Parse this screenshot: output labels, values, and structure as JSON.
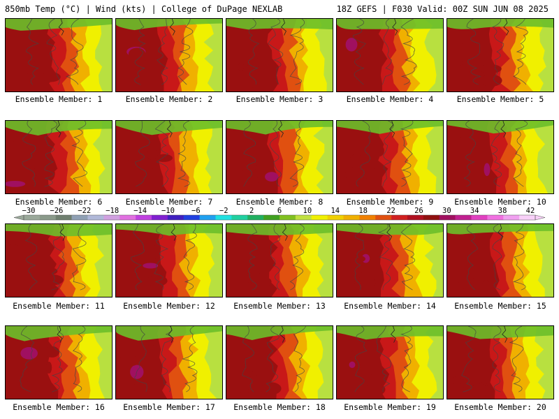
{
  "header": {
    "left": "850mb Temp (°C) | Wind (kts) | College of DuPage NEXLAB",
    "right": "18Z GEFS | F030 Valid: 00Z SUN JUN 08 2025"
  },
  "members": [
    "Ensemble Member: 1",
    "Ensemble Member: 2",
    "Ensemble Member: 3",
    "Ensemble Member: 4",
    "Ensemble Member: 5",
    "Ensemble Member: 6",
    "Ensemble Member: 7",
    "Ensemble Member: 8",
    "Ensemble Member: 9",
    "Ensemble Member: 10",
    "Ensemble Member: 11",
    "Ensemble Member: 12",
    "Ensemble Member: 13",
    "Ensemble Member: 14",
    "Ensemble Member: 15",
    "Ensemble Member: 16",
    "Ensemble Member: 17",
    "Ensemble Member: 18",
    "Ensemble Member: 19",
    "Ensemble Member: 20"
  ],
  "colorbar": {
    "labels": [
      "−30",
      "−26",
      "−22",
      "−18",
      "−14",
      "−10",
      "−6",
      "−2",
      "2",
      "6",
      "10",
      "14",
      "18",
      "22",
      "26",
      "30",
      "34",
      "38",
      "42"
    ],
    "colors": [
      "#9aa89a",
      "#8a9a8a",
      "#6f7f6f",
      "#8fa0b4",
      "#b0b8d8",
      "#d0a0e0",
      "#e070e0",
      "#c040e0",
      "#8020d0",
      "#4020c0",
      "#2040e0",
      "#20a0f0",
      "#20e0e0",
      "#20d0a0",
      "#20b060",
      "#40a020",
      "#80c020",
      "#c0e040",
      "#f0f000",
      "#f0d000",
      "#f0b000",
      "#f08000",
      "#e05010",
      "#d02020",
      "#b01020",
      "#901010",
      "#a01060",
      "#c02090",
      "#e040c0",
      "#f070e0",
      "#f0a0f0",
      "#f8d0f8"
    ]
  },
  "map_colors": {
    "cold": "#6cbf2a",
    "cool": "#b8e040",
    "mild": "#f0f000",
    "warm": "#f0b000",
    "hot": "#e05010",
    "very_hot": "#c81818",
    "extreme": "#9a1010",
    "max": "#a01060"
  }
}
